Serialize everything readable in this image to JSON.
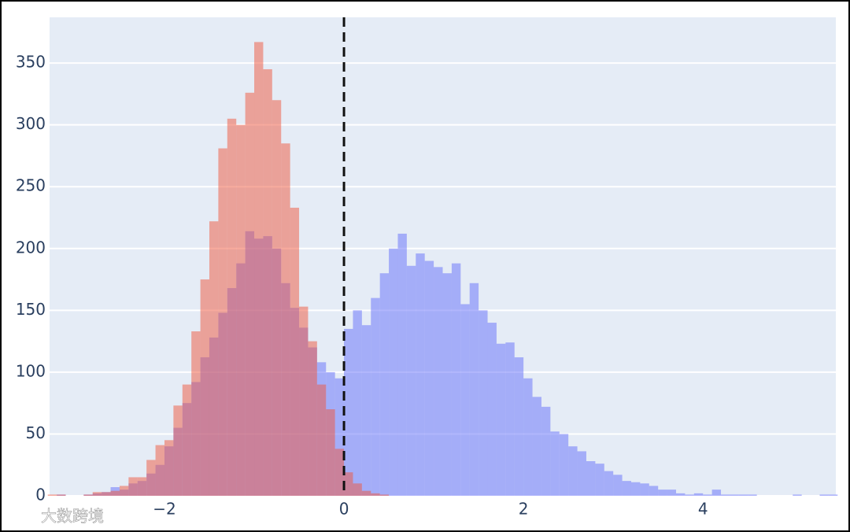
{
  "chart_data": {
    "type": "histogram",
    "bins": [
      -3.3,
      -3.2,
      -3.1,
      -3.0,
      -2.9,
      -2.8,
      -2.7,
      -2.6,
      -2.5,
      -2.4,
      -2.3,
      -2.2,
      -2.1,
      -2.0,
      -1.9,
      -1.8,
      -1.7,
      -1.6,
      -1.5,
      -1.4,
      -1.3,
      -1.2,
      -1.1,
      -1.0,
      -0.9,
      -0.8,
      -0.7,
      -0.6,
      -0.5,
      -0.4,
      -0.3,
      -0.2,
      -0.1,
      0.0,
      0.1,
      0.2,
      0.3,
      0.4,
      0.5,
      0.6,
      0.7,
      0.8,
      0.9,
      1.0,
      1.1,
      1.2,
      1.3,
      1.4,
      1.5,
      1.6,
      1.7,
      1.8,
      1.9,
      2.0,
      2.1,
      2.2,
      2.3,
      2.4,
      2.5,
      2.6,
      2.7,
      2.8,
      2.9,
      3.0,
      3.1,
      3.2,
      3.3,
      3.4,
      3.5,
      3.6,
      3.7,
      3.8,
      3.9,
      4.0,
      4.1,
      4.2,
      4.3,
      4.4,
      4.5,
      4.6,
      4.7,
      4.8,
      4.9,
      5.0,
      5.1,
      5.2,
      5.3,
      5.4,
      5.5
    ],
    "series": [
      {
        "color": "#636efa",
        "values": [
          0,
          1,
          0,
          0,
          1,
          2,
          3,
          7,
          5,
          10,
          12,
          18,
          25,
          40,
          55,
          75,
          92,
          112,
          128,
          148,
          168,
          188,
          214,
          208,
          210,
          200,
          172,
          152,
          136,
          120,
          108,
          100,
          95,
          135,
          150,
          138,
          160,
          180,
          200,
          212,
          186,
          196,
          190,
          185,
          180,
          188,
          155,
          172,
          150,
          140,
          123,
          124,
          112,
          95,
          80,
          72,
          52,
          50,
          40,
          36,
          28,
          26,
          20,
          17,
          12,
          11,
          10,
          8,
          5,
          5,
          2,
          1,
          2,
          1,
          5,
          1,
          1,
          1,
          1,
          0,
          0,
          0,
          0,
          1,
          0,
          0,
          1,
          1
        ]
      },
      {
        "color": "#ef553b",
        "values": [
          1,
          1,
          0,
          0,
          1,
          3,
          3,
          4,
          8,
          15,
          15,
          29,
          41,
          45,
          73,
          90,
          133,
          175,
          222,
          281,
          305,
          300,
          326,
          367,
          345,
          320,
          285,
          233,
          153,
          125,
          90,
          70,
          38,
          19,
          10,
          4,
          2,
          1,
          0,
          0,
          0,
          0,
          0,
          0,
          0,
          0,
          0,
          0,
          0,
          0,
          0,
          0,
          0,
          0,
          0,
          0,
          0,
          0,
          0,
          0,
          0,
          0,
          0,
          0,
          0,
          0,
          0,
          0,
          0,
          0,
          0,
          0,
          0,
          0,
          0,
          0,
          0,
          0,
          0,
          0,
          0,
          0,
          0,
          0,
          0,
          0,
          0,
          0
        ]
      }
    ],
    "opacity": 0.5,
    "xlim": [
      -3.28,
      5.48
    ],
    "ylim": [
      0,
      387
    ],
    "xticks": [
      {
        "value": -2,
        "label": "−2"
      },
      0,
      2,
      4
    ],
    "yticks": [
      0,
      50,
      100,
      150,
      200,
      250,
      300,
      350
    ],
    "grid": true,
    "reference_line": {
      "x": 0,
      "color": "#111111"
    },
    "watermark": "大数跨境"
  }
}
